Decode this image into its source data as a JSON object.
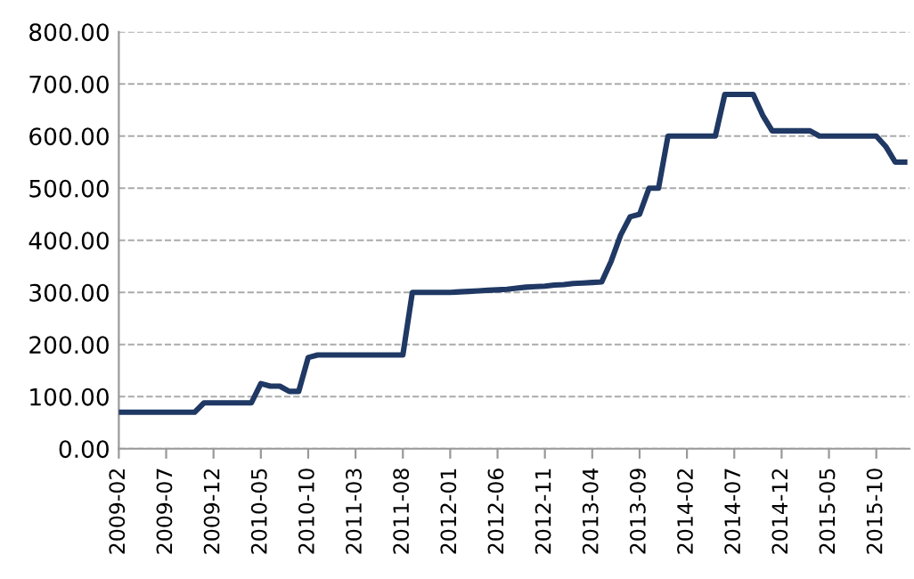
{
  "chart_data": {
    "type": "line",
    "categories": [
      "2009-02",
      null,
      null,
      null,
      null,
      "2009-07",
      null,
      null,
      null,
      null,
      "2009-12",
      null,
      null,
      null,
      null,
      "2010-05",
      null,
      null,
      null,
      null,
      "2010-10",
      null,
      null,
      null,
      null,
      "2011-03",
      null,
      null,
      null,
      null,
      "2011-08",
      null,
      null,
      null,
      null,
      "2012-01",
      null,
      null,
      null,
      null,
      "2012-06",
      null,
      null,
      null,
      null,
      "2012-11",
      null,
      null,
      null,
      null,
      "2013-04",
      null,
      null,
      null,
      null,
      "2013-09",
      null,
      null,
      null,
      null,
      "2014-02",
      null,
      null,
      null,
      null,
      "2014-07",
      null,
      null,
      null,
      null,
      "2014-12",
      null,
      null,
      null,
      null,
      "2015-05",
      null,
      null,
      null,
      null,
      "2015-10",
      null,
      null,
      null
    ],
    "series": [
      {
        "color": "#1f3864",
        "values": [
          70,
          70,
          70,
          70,
          70,
          70,
          70,
          70,
          70,
          88,
          88,
          88,
          88,
          88,
          88,
          125,
          120,
          120,
          110,
          110,
          175,
          180,
          180,
          180,
          180,
          180,
          180,
          180,
          180,
          180,
          180,
          300,
          300,
          300,
          300,
          300,
          301,
          302,
          303,
          304,
          305,
          306,
          308,
          310,
          311,
          312,
          314,
          315,
          317,
          318,
          319,
          320,
          360,
          410,
          445,
          450,
          500,
          500,
          600,
          600,
          600,
          600,
          600,
          600,
          680,
          680,
          680,
          680,
          640,
          610,
          610,
          610,
          610,
          610,
          600,
          600,
          600,
          600,
          600,
          600,
          600,
          580,
          550,
          550
        ]
      }
    ],
    "ylim": [
      0,
      800
    ],
    "yticks": [
      {
        "value": 0,
        "label": "0.00"
      },
      {
        "value": 100,
        "label": "100.00"
      },
      {
        "value": 200,
        "label": "200.00"
      },
      {
        "value": 300,
        "label": "300.00"
      },
      {
        "value": 400,
        "label": "400.00"
      },
      {
        "value": 500,
        "label": "500.00"
      },
      {
        "value": 600,
        "label": "600.00"
      },
      {
        "value": 700,
        "label": "700.00"
      },
      {
        "value": 800,
        "label": "800.00"
      }
    ],
    "grid": "y",
    "legend": false,
    "marker": "none",
    "line_style": "solid"
  }
}
